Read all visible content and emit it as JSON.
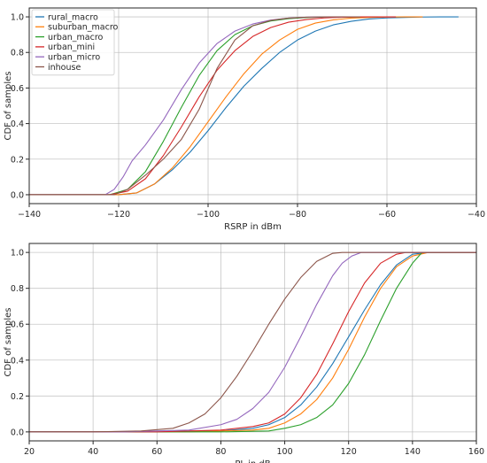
{
  "chart_data": [
    {
      "type": "line",
      "xlabel": "RSRP in dBm",
      "ylabel": "CDF of samples",
      "xlim": [
        -140,
        -40
      ],
      "ylim": [
        -0.05,
        1.05
      ],
      "xticks": [
        -140,
        -120,
        -100,
        -80,
        -60,
        -40
      ],
      "yticks": [
        0.0,
        0.2,
        0.4,
        0.6,
        0.8,
        1.0
      ],
      "xtick_labels": [
        "−140",
        "−120",
        "−100",
        "−80",
        "−60",
        "−40"
      ],
      "ytick_labels": [
        "0.0",
        "0.2",
        "0.4",
        "0.6",
        "0.8",
        "1.0"
      ],
      "grid": true,
      "legend": {
        "position": "top-left"
      },
      "series": [
        {
          "name": "rural_macro",
          "color": "#1f77b4",
          "x": [
            -140,
            -120,
            -116,
            -112,
            -108,
            -104,
            -100,
            -96,
            -92,
            -88,
            -84,
            -80,
            -76,
            -72,
            -68,
            -64,
            -60,
            -56,
            -52,
            -48,
            -44
          ],
          "y": [
            0,
            0,
            0.01,
            0.06,
            0.14,
            0.24,
            0.36,
            0.49,
            0.61,
            0.71,
            0.8,
            0.87,
            0.92,
            0.955,
            0.975,
            0.988,
            0.994,
            0.997,
            0.999,
            1.0,
            1.0
          ]
        },
        {
          "name": "suburban_macro",
          "color": "#ff7f0e",
          "x": [
            -140,
            -120,
            -116,
            -112,
            -108,
            -104,
            -100,
            -96,
            -92,
            -88,
            -84,
            -80,
            -76,
            -72,
            -68,
            -64,
            -60,
            -56,
            -52
          ],
          "y": [
            0,
            0,
            0.01,
            0.06,
            0.15,
            0.27,
            0.41,
            0.55,
            0.68,
            0.79,
            0.87,
            0.93,
            0.965,
            0.983,
            0.993,
            0.997,
            0.999,
            1.0,
            1.0
          ]
        },
        {
          "name": "urban_macro",
          "color": "#2ca02c",
          "x": [
            -140,
            -122,
            -118,
            -114,
            -110,
            -106,
            -102,
            -98,
            -94,
            -90,
            -86,
            -82,
            -78,
            -74,
            -70,
            -66,
            -62
          ],
          "y": [
            0,
            0,
            0.03,
            0.13,
            0.3,
            0.49,
            0.67,
            0.81,
            0.9,
            0.95,
            0.977,
            0.99,
            0.996,
            0.999,
            1.0,
            1.0,
            1.0
          ]
        },
        {
          "name": "urban_mini",
          "color": "#d62728",
          "x": [
            -140,
            -122,
            -118,
            -114,
            -110,
            -106,
            -102,
            -98,
            -94,
            -90,
            -86,
            -82,
            -78,
            -74,
            -70,
            -66,
            -62,
            -58
          ],
          "y": [
            0,
            0,
            0.02,
            0.09,
            0.22,
            0.38,
            0.55,
            0.7,
            0.81,
            0.89,
            0.94,
            0.97,
            0.985,
            0.994,
            0.998,
            1.0,
            1.0,
            1.0
          ]
        },
        {
          "name": "urban_micro",
          "color": "#9467bd",
          "x": [
            -140,
            -123,
            -121,
            -119,
            -117,
            -114,
            -110,
            -106,
            -102,
            -98,
            -94,
            -90,
            -86,
            -82,
            -78,
            -74,
            -70
          ],
          "y": [
            0,
            0,
            0.03,
            0.1,
            0.19,
            0.28,
            0.42,
            0.59,
            0.74,
            0.85,
            0.92,
            0.96,
            0.982,
            0.993,
            0.998,
            1.0,
            1.0
          ]
        },
        {
          "name": "inhouse",
          "color": "#8c564b",
          "x": [
            -140,
            -121,
            -118,
            -114,
            -110,
            -106,
            -102,
            -98,
            -94,
            -90,
            -86,
            -82,
            -78,
            -74,
            -70,
            -66
          ],
          "y": [
            0,
            0,
            0.03,
            0.11,
            0.2,
            0.31,
            0.48,
            0.71,
            0.87,
            0.95,
            0.98,
            0.993,
            0.998,
            1.0,
            1.0,
            1.0
          ]
        }
      ]
    },
    {
      "type": "line",
      "xlabel": "PL in dB",
      "ylabel": "CDF of samples",
      "xlim": [
        20,
        160
      ],
      "ylim": [
        -0.05,
        1.05
      ],
      "xticks": [
        20,
        40,
        60,
        80,
        100,
        120,
        140,
        160
      ],
      "yticks": [
        0.0,
        0.2,
        0.4,
        0.6,
        0.8,
        1.0
      ],
      "xtick_labels": [
        "20",
        "40",
        "60",
        "80",
        "100",
        "120",
        "140",
        "160"
      ],
      "ytick_labels": [
        "0.0",
        "0.2",
        "0.4",
        "0.6",
        "0.8",
        "1.0"
      ],
      "grid": true,
      "series": [
        {
          "name": "rural_macro",
          "color": "#1f77b4",
          "x": [
            20,
            60,
            80,
            90,
            95,
            100,
            105,
            110,
            115,
            120,
            125,
            130,
            135,
            140,
            145,
            160
          ],
          "y": [
            0,
            0,
            0.005,
            0.02,
            0.04,
            0.08,
            0.15,
            0.25,
            0.38,
            0.53,
            0.68,
            0.82,
            0.93,
            0.99,
            1.0,
            1.0
          ]
        },
        {
          "name": "suburban_macro",
          "color": "#ff7f0e",
          "x": [
            20,
            70,
            90,
            95,
            100,
            105,
            110,
            115,
            120,
            125,
            130,
            135,
            140,
            145,
            160
          ],
          "y": [
            0,
            0,
            0.01,
            0.02,
            0.05,
            0.1,
            0.18,
            0.3,
            0.46,
            0.64,
            0.8,
            0.92,
            0.98,
            1.0,
            1.0
          ]
        },
        {
          "name": "urban_macro",
          "color": "#2ca02c",
          "x": [
            20,
            80,
            95,
            100,
            105,
            110,
            115,
            120,
            125,
            130,
            135,
            140,
            143,
            160
          ],
          "y": [
            0,
            0,
            0.005,
            0.02,
            0.04,
            0.08,
            0.15,
            0.27,
            0.43,
            0.62,
            0.8,
            0.94,
            1.0,
            1.0
          ]
        },
        {
          "name": "urban_mini",
          "color": "#d62728",
          "x": [
            20,
            60,
            80,
            90,
            95,
            100,
            105,
            110,
            115,
            120,
            125,
            130,
            135,
            138,
            160
          ],
          "y": [
            0,
            0,
            0.01,
            0.03,
            0.05,
            0.1,
            0.19,
            0.32,
            0.49,
            0.67,
            0.83,
            0.94,
            0.99,
            1.0,
            1.0
          ]
        },
        {
          "name": "urban_micro",
          "color": "#9467bd",
          "x": [
            20,
            50,
            70,
            80,
            85,
            90,
            95,
            100,
            105,
            110,
            115,
            118,
            121,
            124,
            127,
            160
          ],
          "y": [
            0,
            0,
            0.01,
            0.04,
            0.07,
            0.13,
            0.22,
            0.36,
            0.53,
            0.71,
            0.87,
            0.94,
            0.98,
            1.0,
            1.0,
            1.0
          ]
        },
        {
          "name": "inhouse",
          "color": "#8c564b",
          "x": [
            20,
            40,
            55,
            65,
            70,
            75,
            80,
            85,
            90,
            95,
            100,
            105,
            110,
            115,
            118,
            160
          ],
          "y": [
            0,
            0,
            0.005,
            0.02,
            0.05,
            0.1,
            0.19,
            0.31,
            0.45,
            0.6,
            0.74,
            0.86,
            0.95,
            0.995,
            1.0,
            1.0
          ]
        }
      ]
    }
  ]
}
